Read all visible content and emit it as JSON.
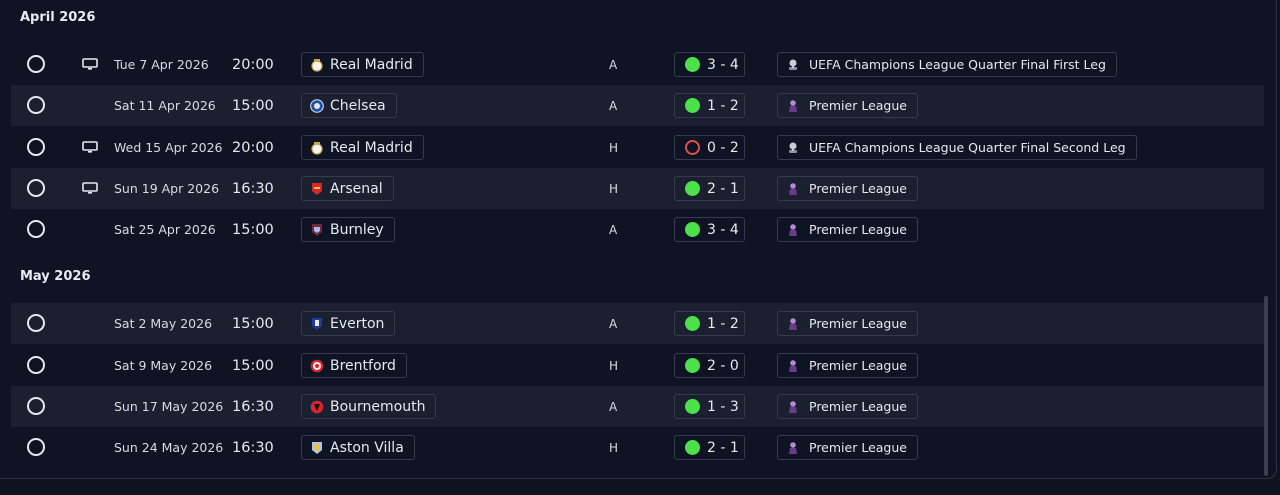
{
  "months": [
    {
      "label": "April 2026",
      "top": 10
    },
    {
      "label": "May 2026",
      "top": 269
    }
  ],
  "fixtures": [
    {
      "date": "Tue 7 Apr 2026",
      "time": "20:00",
      "team": "Real Madrid",
      "crest": "real-madrid-crest",
      "venue": "A",
      "result": "3 - 4",
      "outcome": "win",
      "competition": "UEFA Champions League Quarter Final First Leg",
      "comp_icon": "ucl-trophy-icon",
      "tv": true
    },
    {
      "date": "Sat 11 Apr 2026",
      "time": "15:00",
      "team": "Chelsea",
      "crest": "chelsea-crest",
      "venue": "A",
      "result": "1 - 2",
      "outcome": "win",
      "competition": "Premier League",
      "comp_icon": "premier-league-icon",
      "tv": false
    },
    {
      "date": "Wed 15 Apr 2026",
      "time": "20:00",
      "team": "Real Madrid",
      "crest": "real-madrid-crest",
      "venue": "H",
      "result": "0 - 2",
      "outcome": "loss",
      "competition": "UEFA Champions League Quarter Final Second Leg",
      "comp_icon": "ucl-trophy-icon",
      "tv": true
    },
    {
      "date": "Sun 19 Apr 2026",
      "time": "16:30",
      "team": "Arsenal",
      "crest": "arsenal-crest",
      "venue": "H",
      "result": "2 - 1",
      "outcome": "win",
      "competition": "Premier League",
      "comp_icon": "premier-league-icon",
      "tv": true
    },
    {
      "date": "Sat 25 Apr 2026",
      "time": "15:00",
      "team": "Burnley",
      "crest": "burnley-crest",
      "venue": "A",
      "result": "3 - 4",
      "outcome": "win",
      "competition": "Premier League",
      "comp_icon": "premier-league-icon",
      "tv": false
    },
    {
      "date": "Sat 2 May 2026",
      "time": "15:00",
      "team": "Everton",
      "crest": "everton-crest",
      "venue": "A",
      "result": "1 - 2",
      "outcome": "win",
      "competition": "Premier League",
      "comp_icon": "premier-league-icon",
      "tv": false
    },
    {
      "date": "Sat 9 May 2026",
      "time": "15:00",
      "team": "Brentford",
      "crest": "brentford-crest",
      "venue": "H",
      "result": "2 - 0",
      "outcome": "win",
      "competition": "Premier League",
      "comp_icon": "premier-league-icon",
      "tv": false
    },
    {
      "date": "Sun 17 May 2026",
      "time": "16:30",
      "team": "Bournemouth",
      "crest": "bournemouth-crest",
      "venue": "A",
      "result": "1 - 3",
      "outcome": "win",
      "competition": "Premier League",
      "comp_icon": "premier-league-icon",
      "tv": false
    },
    {
      "date": "Sun 24 May 2026",
      "time": "16:30",
      "team": "Aston Villa",
      "crest": "aston-villa-crest",
      "venue": "H",
      "result": "2 - 1",
      "outcome": "win",
      "competition": "Premier League",
      "comp_icon": "premier-league-icon",
      "tv": false
    }
  ],
  "colors": {
    "win": "#4ce04a",
    "loss": "#e0504a",
    "row_alt": "#1a2030",
    "background": "#0f1424"
  }
}
